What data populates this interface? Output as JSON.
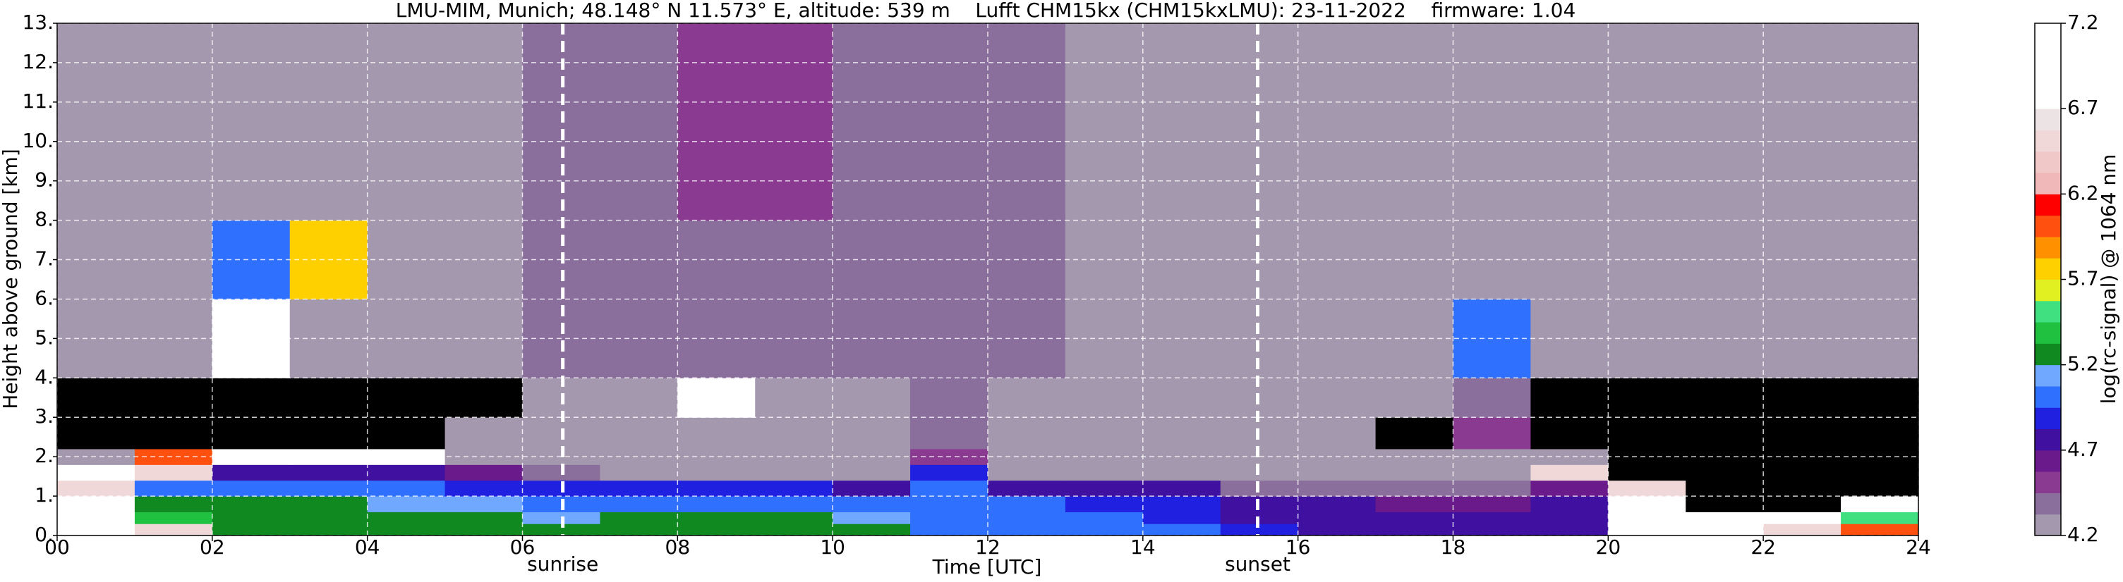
{
  "chart_data": {
    "type": "heatmap",
    "title": "LMU-MIM, Munich; 48.148° N 11.573° E, altitude: 539 m    Lufft CHM15kx (CHM15kxLMU): 23-11-2022    firmware: 1.04",
    "xlabel": "Time [UTC]",
    "ylabel": "Height above ground [km]",
    "colorbar_label": "log(rc-signal) @ 1064 nm",
    "xlim": [
      0,
      24
    ],
    "ylim": [
      0,
      13
    ],
    "xticks": [
      {
        "value": 0,
        "label": "00"
      },
      {
        "value": 2,
        "label": "02"
      },
      {
        "value": 4,
        "label": "04"
      },
      {
        "value": 6,
        "label": "06"
      },
      {
        "value": 8,
        "label": "08"
      },
      {
        "value": 10,
        "label": "10"
      },
      {
        "value": 12,
        "label": "12"
      },
      {
        "value": 14,
        "label": "14"
      },
      {
        "value": 16,
        "label": "16"
      },
      {
        "value": 18,
        "label": "18"
      },
      {
        "value": 20,
        "label": "20"
      },
      {
        "value": 22,
        "label": "22"
      },
      {
        "value": 24,
        "label": "24"
      }
    ],
    "yticks": [
      {
        "value": 0,
        "label": "0."
      },
      {
        "value": 1,
        "label": "1."
      },
      {
        "value": 2,
        "label": "2."
      },
      {
        "value": 3,
        "label": "3."
      },
      {
        "value": 4,
        "label": "4."
      },
      {
        "value": 5,
        "label": "5."
      },
      {
        "value": 6,
        "label": "6."
      },
      {
        "value": 7,
        "label": "7."
      },
      {
        "value": 8,
        "label": "8."
      },
      {
        "value": 9,
        "label": "9."
      },
      {
        "value": 10,
        "label": "10."
      },
      {
        "value": 11,
        "label": "11."
      },
      {
        "value": 12,
        "label": "12."
      },
      {
        "value": 13,
        "label": "13."
      }
    ],
    "clim": [
      4.2,
      7.2
    ],
    "cticks": [
      4.2,
      4.7,
      5.2,
      5.7,
      6.2,
      6.7,
      7.2
    ],
    "colors": [
      "#a498ae",
      "#8a6e9c",
      "#8a3a90",
      "#6a1a8a",
      "#4010a0",
      "#2020e0",
      "#3070ff",
      "#70a8ff",
      "#108a20",
      "#20c040",
      "#40e080",
      "#e0f020",
      "#ffd000",
      "#ff9000",
      "#ff5010",
      "#ff0000",
      "#f0b8b8",
      "#f0c8c8",
      "#f0d8d8",
      "#ece4e4",
      "#ffffff",
      "#ffffff",
      "#ffffff",
      "#ffffff"
    ],
    "under_color": "#000000",
    "grid": true,
    "grid_color": "#ffffff",
    "annotations": [
      {
        "x": 6.52,
        "label": "sunrise"
      },
      {
        "x": 15.48,
        "label": "sunset"
      }
    ],
    "xbins": [
      0,
      1,
      2,
      3,
      4,
      5,
      6,
      7,
      8,
      9,
      10,
      11,
      12,
      13,
      14,
      15,
      16,
      17,
      18,
      19,
      20,
      21,
      22,
      23,
      24
    ],
    "ybins": [
      0,
      0.3,
      0.6,
      1,
      1.4,
      1.8,
      2.2,
      3,
      4,
      6,
      8,
      10,
      13
    ],
    "z": [
      [
        7.0,
        6.5,
        5.3,
        5.3,
        5.3,
        5.3,
        5.3,
        5.2,
        5.3,
        5.3,
        5.2,
        5.0,
        5.0,
        5.0,
        5.0,
        4.9,
        4.8,
        4.7,
        4.7,
        4.7,
        6.8,
        6.8,
        6.5,
        6.0
      ],
      [
        6.8,
        5.4,
        5.3,
        5.3,
        5.3,
        5.2,
        5.1,
        5.2,
        5.3,
        5.2,
        5.1,
        5.0,
        5.0,
        4.95,
        4.9,
        4.8,
        4.75,
        4.7,
        4.7,
        4.7,
        6.8,
        6.8,
        6.8,
        5.5
      ],
      [
        6.8,
        5.3,
        5.2,
        5.2,
        5.1,
        5.1,
        5.0,
        5.0,
        5.0,
        5.0,
        5.0,
        5.0,
        4.95,
        4.9,
        4.85,
        4.75,
        4.7,
        4.65,
        4.65,
        4.7,
        6.8,
        4.0,
        4.0,
        6.8
      ],
      [
        6.5,
        5.0,
        5.0,
        5.0,
        4.95,
        4.9,
        4.9,
        4.85,
        4.85,
        4.85,
        4.8,
        5.0,
        4.8,
        4.75,
        4.7,
        4.4,
        4.4,
        4.4,
        4.4,
        4.6,
        6.5,
        4.0,
        4.0,
        4.0
      ],
      [
        6.8,
        6.5,
        4.7,
        4.7,
        4.7,
        4.65,
        4.4,
        4.3,
        4.3,
        4.3,
        4.3,
        4.9,
        4.3,
        4.3,
        4.3,
        4.3,
        4.3,
        4.3,
        4.3,
        6.5,
        4.0,
        4.0,
        4.0,
        4.0
      ],
      [
        4.3,
        6.0,
        6.8,
        6.8,
        6.8,
        4.3,
        4.3,
        4.3,
        4.3,
        4.3,
        4.3,
        4.5,
        4.3,
        4.3,
        4.3,
        4.3,
        4.3,
        4.3,
        4.3,
        4.3,
        4.0,
        4.0,
        4.0,
        4.0
      ],
      [
        4.0,
        4.1,
        4.1,
        4.1,
        4.1,
        4.3,
        4.3,
        4.3,
        4.3,
        4.3,
        4.3,
        4.4,
        4.3,
        4.3,
        4.3,
        4.25,
        4.2,
        4.1,
        4.5,
        4.0,
        4.0,
        4.0,
        4.0,
        4.0
      ],
      [
        4.0,
        4.0,
        4.0,
        4.0,
        4.0,
        4.0,
        4.3,
        4.3,
        6.8,
        4.3,
        4.3,
        4.4,
        4.3,
        4.3,
        4.3,
        4.2,
        4.2,
        4.2,
        4.4,
        4.0,
        4.0,
        4.0,
        4.0,
        4.0
      ],
      [
        4.22,
        4.22,
        6.7,
        4.22,
        4.22,
        4.22,
        4.35,
        4.35,
        4.35,
        4.35,
        4.35,
        4.4,
        4.35,
        4.3,
        4.3,
        4.25,
        4.22,
        4.22,
        5.0,
        4.22,
        4.22,
        4.22,
        4.22,
        4.22
      ],
      [
        4.22,
        4.22,
        5.0,
        5.8,
        4.22,
        4.22,
        4.35,
        4.35,
        4.4,
        4.4,
        4.35,
        4.4,
        4.35,
        4.3,
        4.3,
        4.25,
        4.22,
        4.22,
        4.22,
        4.22,
        4.22,
        4.22,
        4.22,
        4.22
      ],
      [
        4.22,
        4.22,
        4.22,
        4.22,
        4.22,
        4.22,
        4.35,
        4.4,
        4.45,
        4.45,
        4.35,
        4.4,
        4.35,
        4.3,
        4.3,
        4.25,
        4.22,
        4.22,
        4.22,
        4.22,
        4.22,
        4.22,
        4.22,
        4.22
      ],
      [
        4.22,
        4.22,
        4.22,
        4.22,
        4.22,
        4.22,
        4.35,
        4.4,
        4.45,
        4.45,
        4.35,
        4.4,
        4.35,
        4.3,
        4.3,
        4.25,
        4.22,
        4.22,
        4.22,
        4.22,
        4.22,
        4.22,
        4.22,
        4.22
      ]
    ]
  }
}
